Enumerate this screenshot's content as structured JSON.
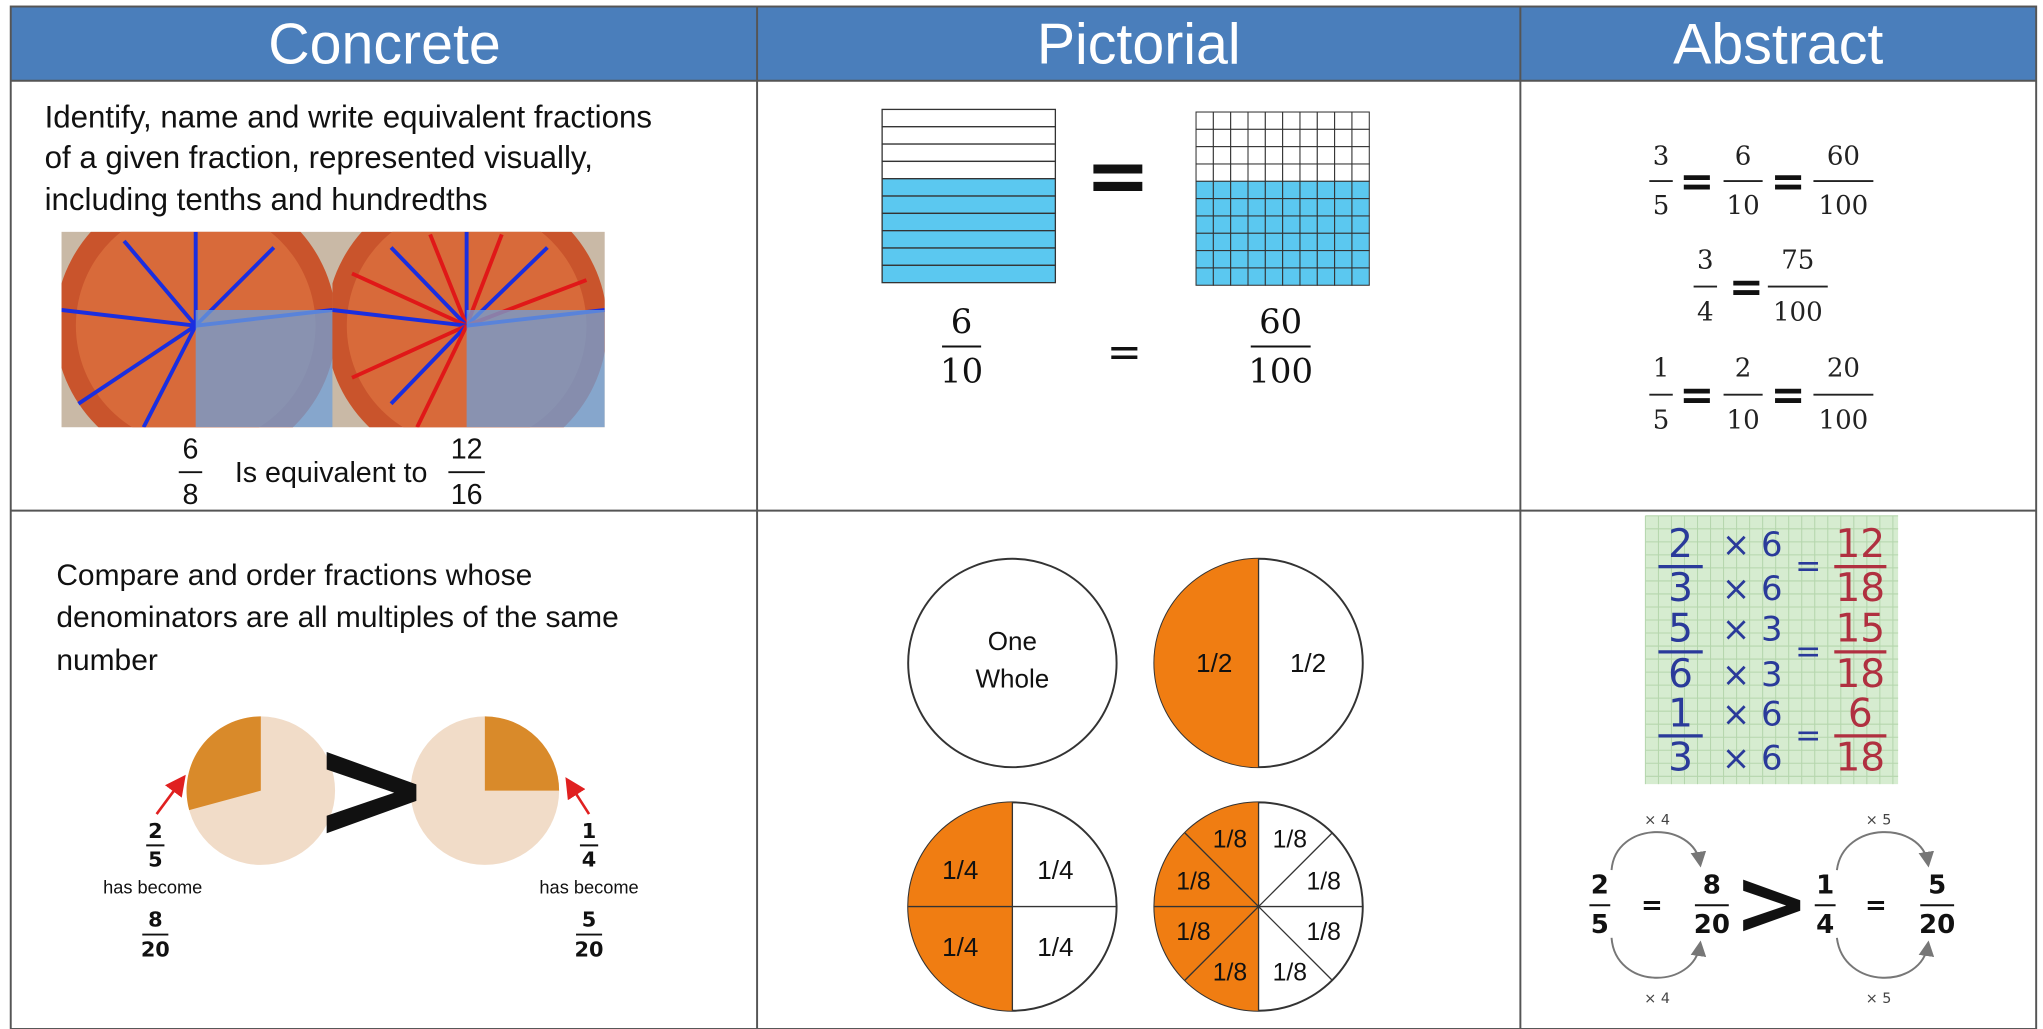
{
  "header": {
    "columns": [
      "Concrete",
      "Pictorial",
      "Abstract"
    ]
  },
  "row1": {
    "concrete": {
      "lines": [
        "Identify, name and write equivalent fractions",
        "of a given fraction, represented visually,",
        "including tenths and hundredths"
      ],
      "left_fraction": [
        "6",
        "8"
      ],
      "connector": "Is equivalent to",
      "right_fraction": [
        "12",
        "16"
      ]
    },
    "pictorial": {
      "equals": "=",
      "left_fraction": [
        "6",
        "10"
      ],
      "right_fraction": [
        "60",
        "100"
      ]
    },
    "abstract": {
      "equals": "=",
      "equations": [
        [
          [
            "3",
            "5"
          ],
          [
            "6",
            "10"
          ],
          [
            "60",
            "100"
          ]
        ],
        [
          [
            "3",
            "4"
          ],
          [
            "75",
            "100"
          ]
        ],
        [
          [
            "1",
            "5"
          ],
          [
            "2",
            "10"
          ],
          [
            "20",
            "100"
          ]
        ]
      ]
    }
  },
  "row2": {
    "concrete": {
      "lines": [
        "Compare and order fractions whose",
        "denominators are all multiples of the same",
        "number"
      ],
      "greater_than": ">",
      "left": {
        "fraction": [
          "2",
          "5"
        ],
        "caption": "has become",
        "result": [
          "8",
          "20"
        ]
      },
      "right": {
        "fraction": [
          "1",
          "4"
        ],
        "caption": "has become",
        "result": [
          "5",
          "20"
        ]
      }
    },
    "pictorial": {
      "whole": [
        "One",
        "Whole"
      ],
      "halves": [
        "1/2",
        "1/2"
      ],
      "quarters": [
        "1/4",
        "1/4",
        "1/4",
        "1/4"
      ],
      "eighths": [
        "1/8",
        "1/8",
        "1/8",
        "1/8",
        "1/8",
        "1/8",
        "1/8",
        "1/8"
      ]
    },
    "abstract": {
      "equals": "=",
      "equations": [
        {
          "fraction": [
            "2",
            "3"
          ],
          "multiplier": "× 6",
          "result": [
            "12",
            "18"
          ]
        },
        {
          "fraction": [
            "5",
            "6"
          ],
          "multiplier": "× 3",
          "result": [
            "15",
            "18"
          ]
        },
        {
          "fraction": [
            "1",
            "3"
          ],
          "multiplier": "× 6",
          "result": [
            "6",
            "18"
          ]
        }
      ],
      "comparison": {
        "left": [
          "2",
          "5"
        ],
        "left_result": [
          "8",
          "20"
        ],
        "left_multiplier": "× 4",
        "greater_than": ">",
        "right": [
          "1",
          "4"
        ],
        "right_result": [
          "5",
          "20"
        ],
        "right_multiplier": "× 5"
      }
    }
  }
}
